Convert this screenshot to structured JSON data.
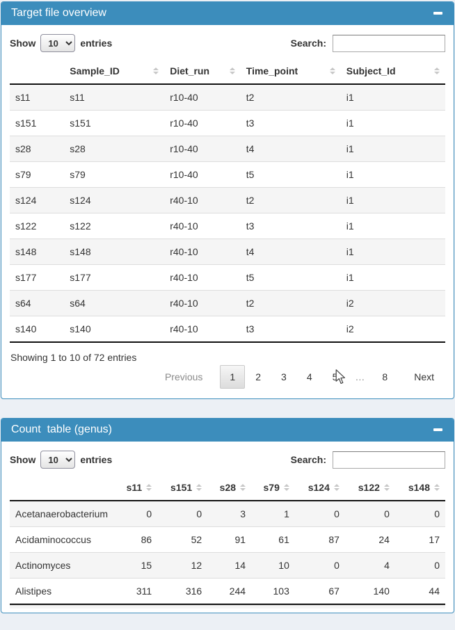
{
  "colors": {
    "panel_header_bg": "#3c8dbc",
    "panel_header_text": "#ffffff",
    "page_background": "#ecf0f5",
    "stripe_row": "#f5f5f5",
    "table_rule": "#111111"
  },
  "panels": [
    {
      "title": "Target file overview",
      "collapse_icon": "minus",
      "controls": {
        "show_label": "Show",
        "page_length": "10",
        "entries_label": "entries",
        "search_label": "Search:",
        "search_value": ""
      },
      "table": {
        "numeric": false,
        "columns": [
          "",
          "Sample_ID",
          "Diet_run",
          "Time_point",
          "Subject_Id"
        ],
        "rows": [
          {
            "name": "s11",
            "cells": [
              "s11",
              "r10-40",
              "t2",
              "i1"
            ]
          },
          {
            "name": "s151",
            "cells": [
              "s151",
              "r10-40",
              "t3",
              "i1"
            ]
          },
          {
            "name": "s28",
            "cells": [
              "s28",
              "r10-40",
              "t4",
              "i1"
            ]
          },
          {
            "name": "s79",
            "cells": [
              "s79",
              "r10-40",
              "t5",
              "i1"
            ]
          },
          {
            "name": "s124",
            "cells": [
              "s124",
              "r40-10",
              "t2",
              "i1"
            ]
          },
          {
            "name": "s122",
            "cells": [
              "s122",
              "r40-10",
              "t3",
              "i1"
            ]
          },
          {
            "name": "s148",
            "cells": [
              "s148",
              "r40-10",
              "t4",
              "i1"
            ]
          },
          {
            "name": "s177",
            "cells": [
              "s177",
              "r40-10",
              "t5",
              "i1"
            ]
          },
          {
            "name": "s64",
            "cells": [
              "s64",
              "r40-10",
              "t2",
              "i2"
            ]
          },
          {
            "name": "s140",
            "cells": [
              "s140",
              "r40-10",
              "t3",
              "i2"
            ]
          }
        ]
      },
      "info": "Showing 1 to 10 of 72 entries",
      "pagination": {
        "previous_label": "Previous",
        "pages": [
          "1",
          "2",
          "3",
          "4",
          "5",
          "…",
          "8"
        ],
        "current": "1",
        "next_label": "Next"
      }
    },
    {
      "title": "Count  table (genus)",
      "collapse_icon": "minus",
      "controls": {
        "show_label": "Show",
        "page_length": "10",
        "entries_label": "entries",
        "search_label": "Search:",
        "search_value": ""
      },
      "table": {
        "numeric": true,
        "columns": [
          "",
          "s11",
          "s151",
          "s28",
          "s79",
          "s124",
          "s122",
          "s148"
        ],
        "rows": [
          {
            "name": "Acetanaerobacterium",
            "cells": [
              "0",
              "0",
              "3",
              "1",
              "0",
              "0",
              "0"
            ]
          },
          {
            "name": "Acidaminococcus",
            "cells": [
              "86",
              "52",
              "91",
              "61",
              "87",
              "24",
              "17"
            ]
          },
          {
            "name": "Actinomyces",
            "cells": [
              "15",
              "12",
              "14",
              "10",
              "0",
              "4",
              "0"
            ]
          },
          {
            "name": "Alistipes",
            "cells": [
              "311",
              "316",
              "244",
              "103",
              "67",
              "140",
              "44"
            ]
          }
        ]
      }
    }
  ]
}
